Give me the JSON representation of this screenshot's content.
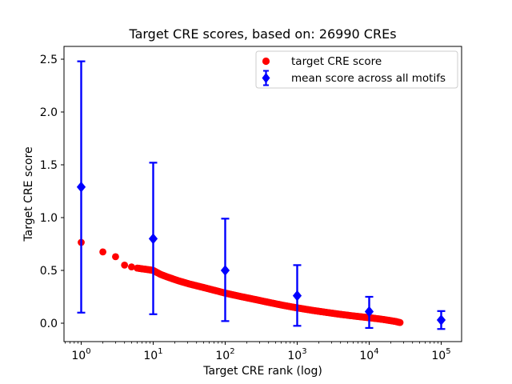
{
  "figure": {
    "title": "Target CRE scores, based on: 26990 CREs",
    "xlabel": "Target CRE rank (log)",
    "ylabel": "Target CRE score"
  },
  "legend": {
    "items": [
      {
        "label": "target CRE score",
        "marker": "circle",
        "color": "#ff0000"
      },
      {
        "label": "mean score across all motifs",
        "marker": "diamond-errorbar",
        "color": "#0000ff"
      }
    ]
  },
  "axes": {
    "x": {
      "scale": "log",
      "tick_exponents": [
        0,
        1,
        2,
        3,
        4,
        5
      ],
      "minor_multiples": [
        2,
        3,
        4,
        5,
        6,
        7,
        8,
        9
      ],
      "minor_decades": [
        -1,
        0,
        1,
        2,
        3,
        4
      ]
    },
    "y": {
      "tick_values": [
        "0.0",
        "0.5",
        "1.0",
        "1.5",
        "2.0",
        "2.5"
      ]
    }
  },
  "colors": {
    "target_series": "#ff0000",
    "mean_series": "#0000ff",
    "axis": "#000000",
    "legend_border": "#cccccc",
    "background": "#ffffff"
  },
  "chart_data": {
    "type": "scatter",
    "title": "Target CRE scores, based on: 26990 CREs",
    "xlabel": "Target CRE rank (log)",
    "ylabel": "Target CRE score",
    "x_scale": "log",
    "xlim_log10": [
      -0.24,
      5.29
    ],
    "ylim": [
      -0.16,
      2.59
    ],
    "grid": false,
    "legend_position": "upper right",
    "n_cres": 26990,
    "series": [
      {
        "name": "target CRE score",
        "type": "dense-scatter",
        "marker": "circle",
        "color": "#ff0000",
        "sample_points_rank_score": [
          [
            1,
            0.77
          ],
          [
            2,
            0.67
          ],
          [
            3,
            0.63
          ],
          [
            4,
            0.55
          ],
          [
            5,
            0.53
          ],
          [
            10,
            0.5
          ],
          [
            30,
            0.41
          ],
          [
            100,
            0.28
          ],
          [
            300,
            0.21
          ],
          [
            1000,
            0.14
          ],
          [
            3000,
            0.1
          ],
          [
            10000,
            0.05
          ],
          [
            26990,
            0.01
          ]
        ],
        "curve_log10x_y": [
          [
            0,
            0.765
          ],
          [
            0.301,
            0.675
          ],
          [
            0.477,
            0.63
          ],
          [
            0.602,
            0.55
          ],
          [
            0.699,
            0.533
          ],
          [
            0.778,
            0.522
          ],
          [
            0.845,
            0.515
          ],
          [
            0.903,
            0.51
          ],
          [
            0.954,
            0.505
          ],
          [
            1.0,
            0.5
          ],
          [
            1.1,
            0.463
          ],
          [
            1.2,
            0.437
          ],
          [
            1.35,
            0.402
          ],
          [
            1.5,
            0.372
          ],
          [
            1.7,
            0.338
          ],
          [
            1.9,
            0.303
          ],
          [
            2.0,
            0.285
          ],
          [
            2.2,
            0.255
          ],
          [
            2.4,
            0.227
          ],
          [
            2.6,
            0.198
          ],
          [
            2.8,
            0.17
          ],
          [
            3.0,
            0.145
          ],
          [
            3.2,
            0.123
          ],
          [
            3.4,
            0.103
          ],
          [
            3.6,
            0.084
          ],
          [
            3.8,
            0.067
          ],
          [
            4.0,
            0.052
          ],
          [
            4.1,
            0.044
          ],
          [
            4.2,
            0.035
          ],
          [
            4.3,
            0.024
          ],
          [
            4.37,
            0.016
          ],
          [
            4.431,
            0.006
          ]
        ],
        "discrete_ranks": [
          1,
          2,
          3,
          4,
          5
        ],
        "band_start_log10": 0.778,
        "band_end_log10": 4.431
      },
      {
        "name": "mean score across all motifs",
        "type": "errorbar",
        "marker": "diamond",
        "color": "#0000ff",
        "points": [
          {
            "rank": 1,
            "mean": 1.29,
            "lo": 0.1,
            "hi": 2.48
          },
          {
            "rank": 10,
            "mean": 0.8,
            "lo": 0.085,
            "hi": 1.52
          },
          {
            "rank": 100,
            "mean": 0.5,
            "lo": 0.02,
            "hi": 0.99
          },
          {
            "rank": 1000,
            "mean": 0.26,
            "lo": -0.025,
            "hi": 0.55
          },
          {
            "rank": 10000,
            "mean": 0.11,
            "lo": -0.045,
            "hi": 0.25
          },
          {
            "rank": 100000,
            "mean": 0.03,
            "lo": -0.055,
            "hi": 0.115
          }
        ]
      }
    ]
  }
}
